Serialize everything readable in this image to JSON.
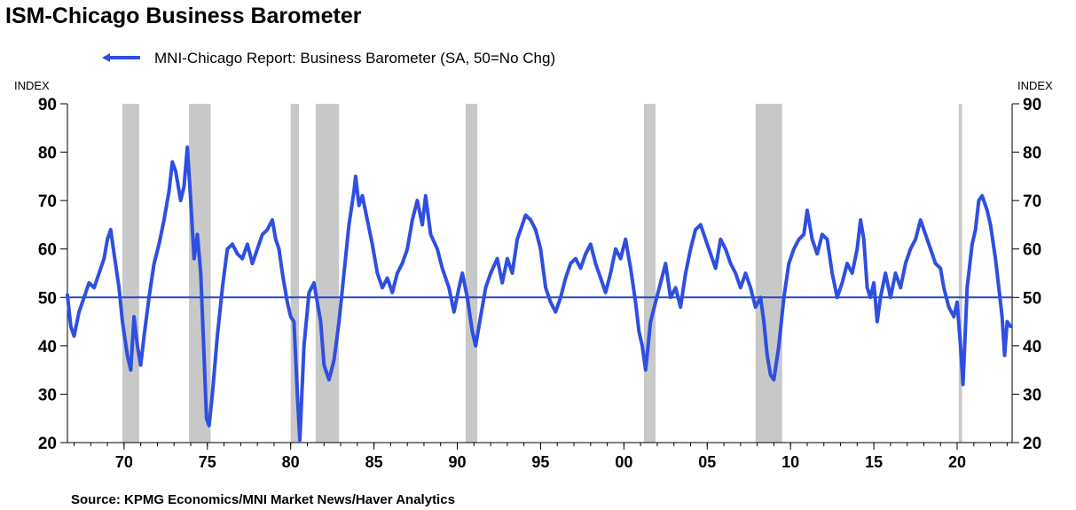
{
  "chart_data": {
    "type": "line",
    "title": "ISM-Chicago Business Barometer",
    "source": "Source:  KPMG Economics/MNI Market News/Haver Analytics",
    "ylabel_left": "INDEX",
    "ylabel_right": "INDEX",
    "ylim": [
      20,
      90
    ],
    "yticks": [
      20,
      30,
      40,
      50,
      60,
      70,
      80,
      90
    ],
    "xlim": [
      1966.6,
      2023.3
    ],
    "xticks": [
      {
        "year": 1970,
        "label": "70"
      },
      {
        "year": 1975,
        "label": "75"
      },
      {
        "year": 1980,
        "label": "80"
      },
      {
        "year": 1985,
        "label": "85"
      },
      {
        "year": 1990,
        "label": "90"
      },
      {
        "year": 1995,
        "label": "95"
      },
      {
        "year": 2000,
        "label": "00"
      },
      {
        "year": 2005,
        "label": "05"
      },
      {
        "year": 2010,
        "label": "10"
      },
      {
        "year": 2015,
        "label": "15"
      },
      {
        "year": 2020,
        "label": "20"
      }
    ],
    "legend_position": "top-left",
    "reference_line": {
      "y": 50,
      "color": "#2748c8"
    },
    "recessions": [
      [
        1969.9,
        1970.9
      ],
      [
        1973.9,
        1975.2
      ],
      [
        1980.0,
        1980.5
      ],
      [
        1981.5,
        1982.9
      ],
      [
        1990.5,
        1991.2
      ],
      [
        2001.2,
        2001.9
      ],
      [
        2007.9,
        2009.5
      ],
      [
        2020.1,
        2020.3
      ]
    ],
    "recession_color": "#c8c8c8",
    "series": [
      {
        "name": "MNI-Chicago Report: Business Barometer (SA, 50=No Chg)",
        "color": "#2e4fe0",
        "points": [
          [
            1966.6,
            50.5
          ],
          [
            1966.8,
            44
          ],
          [
            1967.0,
            42
          ],
          [
            1967.3,
            47
          ],
          [
            1967.6,
            50
          ],
          [
            1967.9,
            53
          ],
          [
            1968.2,
            52
          ],
          [
            1968.5,
            55
          ],
          [
            1968.8,
            58
          ],
          [
            1969.0,
            62
          ],
          [
            1969.2,
            64
          ],
          [
            1969.4,
            59
          ],
          [
            1969.7,
            52
          ],
          [
            1969.9,
            45
          ],
          [
            1970.2,
            38
          ],
          [
            1970.4,
            35
          ],
          [
            1970.6,
            46
          ],
          [
            1970.8,
            40
          ],
          [
            1971.0,
            36
          ],
          [
            1971.2,
            42
          ],
          [
            1971.5,
            50
          ],
          [
            1971.8,
            57
          ],
          [
            1972.1,
            61
          ],
          [
            1972.4,
            66
          ],
          [
            1972.7,
            72
          ],
          [
            1972.9,
            78
          ],
          [
            1973.1,
            76
          ],
          [
            1973.4,
            70
          ],
          [
            1973.6,
            73
          ],
          [
            1973.8,
            81
          ],
          [
            1974.0,
            70
          ],
          [
            1974.2,
            58
          ],
          [
            1974.4,
            63
          ],
          [
            1974.6,
            55
          ],
          [
            1974.8,
            38
          ],
          [
            1974.95,
            25
          ],
          [
            1975.1,
            23.5
          ],
          [
            1975.3,
            30
          ],
          [
            1975.6,
            42
          ],
          [
            1975.9,
            52
          ],
          [
            1976.2,
            60
          ],
          [
            1976.5,
            61
          ],
          [
            1976.8,
            59
          ],
          [
            1977.1,
            58
          ],
          [
            1977.4,
            61
          ],
          [
            1977.7,
            57
          ],
          [
            1978.0,
            60
          ],
          [
            1978.3,
            63
          ],
          [
            1978.6,
            64
          ],
          [
            1978.9,
            66
          ],
          [
            1979.1,
            62
          ],
          [
            1979.3,
            60
          ],
          [
            1979.5,
            55
          ],
          [
            1979.8,
            49
          ],
          [
            1980.0,
            46
          ],
          [
            1980.2,
            45
          ],
          [
            1980.4,
            30
          ],
          [
            1980.55,
            20.5
          ],
          [
            1980.8,
            40
          ],
          [
            1981.1,
            51
          ],
          [
            1981.4,
            53
          ],
          [
            1981.6,
            49
          ],
          [
            1981.8,
            45
          ],
          [
            1982.0,
            36
          ],
          [
            1982.3,
            33
          ],
          [
            1982.6,
            37
          ],
          [
            1982.9,
            45
          ],
          [
            1983.2,
            55
          ],
          [
            1983.5,
            65
          ],
          [
            1983.8,
            72
          ],
          [
            1983.9,
            75
          ],
          [
            1984.1,
            69
          ],
          [
            1984.3,
            71
          ],
          [
            1984.6,
            66
          ],
          [
            1984.9,
            61
          ],
          [
            1985.2,
            55
          ],
          [
            1985.5,
            52
          ],
          [
            1985.8,
            54
          ],
          [
            1986.1,
            51
          ],
          [
            1986.4,
            55
          ],
          [
            1986.7,
            57
          ],
          [
            1987.0,
            60
          ],
          [
            1987.3,
            66
          ],
          [
            1987.6,
            70
          ],
          [
            1987.9,
            65
          ],
          [
            1988.1,
            71
          ],
          [
            1988.4,
            63
          ],
          [
            1988.8,
            60
          ],
          [
            1989.1,
            56
          ],
          [
            1989.5,
            52
          ],
          [
            1989.8,
            47
          ],
          [
            1990.1,
            52
          ],
          [
            1990.3,
            55
          ],
          [
            1990.6,
            50
          ],
          [
            1990.9,
            43
          ],
          [
            1991.1,
            40
          ],
          [
            1991.4,
            46
          ],
          [
            1991.7,
            52
          ],
          [
            1992.0,
            55
          ],
          [
            1992.4,
            58
          ],
          [
            1992.7,
            53
          ],
          [
            1993.0,
            58
          ],
          [
            1993.3,
            55
          ],
          [
            1993.6,
            62
          ],
          [
            1993.9,
            65
          ],
          [
            1994.1,
            67
          ],
          [
            1994.4,
            66
          ],
          [
            1994.7,
            64
          ],
          [
            1995.0,
            60
          ],
          [
            1995.3,
            52
          ],
          [
            1995.6,
            49
          ],
          [
            1995.9,
            47
          ],
          [
            1996.2,
            50
          ],
          [
            1996.5,
            54
          ],
          [
            1996.8,
            57
          ],
          [
            1997.1,
            58
          ],
          [
            1997.4,
            56
          ],
          [
            1997.7,
            59
          ],
          [
            1998.0,
            61
          ],
          [
            1998.3,
            57
          ],
          [
            1998.6,
            54
          ],
          [
            1998.9,
            51
          ],
          [
            1999.2,
            55
          ],
          [
            1999.5,
            60
          ],
          [
            1999.8,
            58
          ],
          [
            2000.1,
            62
          ],
          [
            2000.4,
            56
          ],
          [
            2000.7,
            49
          ],
          [
            2000.9,
            43
          ],
          [
            2001.1,
            40
          ],
          [
            2001.3,
            35
          ],
          [
            2001.6,
            45
          ],
          [
            2001.9,
            49
          ],
          [
            2002.2,
            53
          ],
          [
            2002.5,
            57
          ],
          [
            2002.8,
            50
          ],
          [
            2003.1,
            52
          ],
          [
            2003.4,
            48
          ],
          [
            2003.7,
            55
          ],
          [
            2004.0,
            60
          ],
          [
            2004.3,
            64
          ],
          [
            2004.6,
            65
          ],
          [
            2004.9,
            62
          ],
          [
            2005.2,
            59
          ],
          [
            2005.5,
            56
          ],
          [
            2005.8,
            62
          ],
          [
            2006.1,
            60
          ],
          [
            2006.4,
            57
          ],
          [
            2006.7,
            55
          ],
          [
            2007.0,
            52
          ],
          [
            2007.3,
            55
          ],
          [
            2007.6,
            52
          ],
          [
            2007.9,
            48
          ],
          [
            2008.2,
            50
          ],
          [
            2008.4,
            45
          ],
          [
            2008.6,
            38
          ],
          [
            2008.8,
            34
          ],
          [
            2009.0,
            33
          ],
          [
            2009.3,
            40
          ],
          [
            2009.6,
            50
          ],
          [
            2009.9,
            57
          ],
          [
            2010.2,
            60
          ],
          [
            2010.5,
            62
          ],
          [
            2010.8,
            63
          ],
          [
            2011.0,
            68
          ],
          [
            2011.3,
            62
          ],
          [
            2011.6,
            59
          ],
          [
            2011.9,
            63
          ],
          [
            2012.2,
            62
          ],
          [
            2012.5,
            55
          ],
          [
            2012.8,
            50
          ],
          [
            2013.1,
            53
          ],
          [
            2013.4,
            57
          ],
          [
            2013.7,
            55
          ],
          [
            2014.0,
            60
          ],
          [
            2014.2,
            66
          ],
          [
            2014.4,
            62
          ],
          [
            2014.6,
            52
          ],
          [
            2014.8,
            50
          ],
          [
            2015.0,
            53
          ],
          [
            2015.2,
            45
          ],
          [
            2015.4,
            50
          ],
          [
            2015.7,
            55
          ],
          [
            2016.0,
            50
          ],
          [
            2016.3,
            55
          ],
          [
            2016.6,
            52
          ],
          [
            2016.9,
            57
          ],
          [
            2017.2,
            60
          ],
          [
            2017.5,
            62
          ],
          [
            2017.8,
            66
          ],
          [
            2018.1,
            63
          ],
          [
            2018.4,
            60
          ],
          [
            2018.7,
            57
          ],
          [
            2019.0,
            56
          ],
          [
            2019.2,
            52
          ],
          [
            2019.5,
            48
          ],
          [
            2019.8,
            46
          ],
          [
            2020.0,
            49
          ],
          [
            2020.2,
            40
          ],
          [
            2020.35,
            32
          ],
          [
            2020.6,
            52
          ],
          [
            2020.9,
            61
          ],
          [
            2021.1,
            64
          ],
          [
            2021.3,
            70
          ],
          [
            2021.5,
            71
          ],
          [
            2021.8,
            68
          ],
          [
            2022.0,
            65
          ],
          [
            2022.3,
            58
          ],
          [
            2022.5,
            52
          ],
          [
            2022.7,
            46
          ],
          [
            2022.85,
            38
          ],
          [
            2023.0,
            45
          ],
          [
            2023.2,
            44
          ]
        ]
      }
    ]
  }
}
